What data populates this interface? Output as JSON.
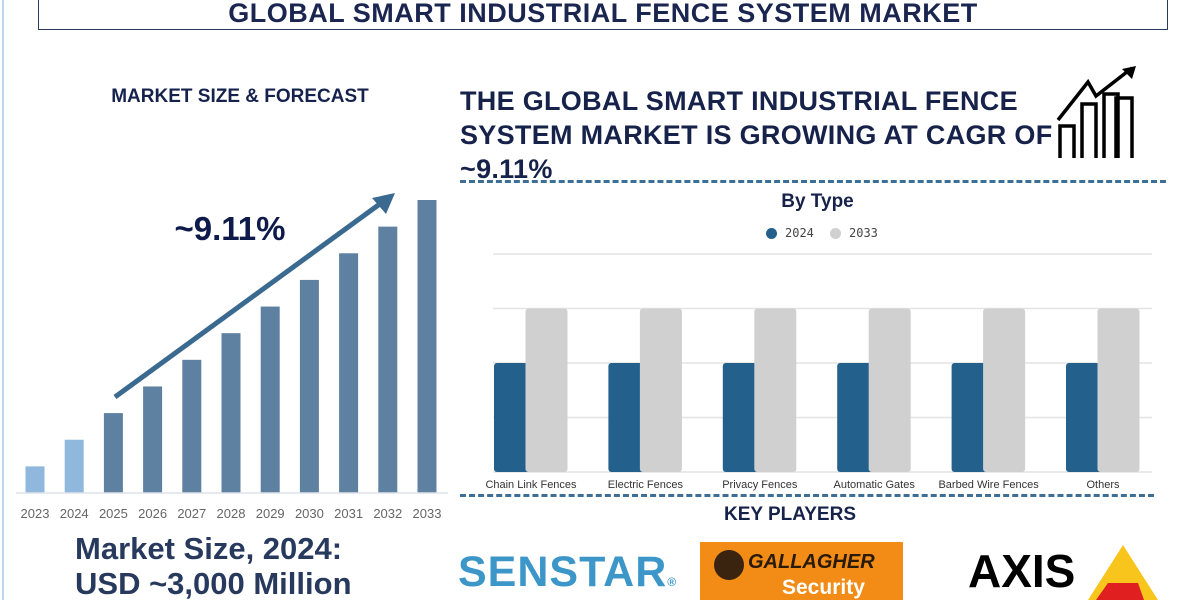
{
  "title": "GLOBAL SMART INDUSTRIAL FENCE SYSTEM MARKET",
  "left_panel": {
    "heading": "MARKET SIZE & FORECAST",
    "cagr_label": "~9.11%",
    "market_size_line1": "Market Size, 2024:",
    "market_size_line2": "USD ~3,000 Million"
  },
  "headline": "THE GLOBAL SMART INDUSTRIAL FENCE SYSTEM MARKET IS GROWING AT CAGR OF ~9.11%",
  "key_players": {
    "heading": "KEY PLAYERS",
    "logos": [
      "SENSTAR",
      "GALLAGHER Security",
      "AXIS COMMUNICATIONS"
    ]
  },
  "colors": {
    "historic": "#8fb8dc",
    "forecast": "#5e81a2",
    "type_2024": "#23608c",
    "type_2033": "#d0d0d0",
    "heading": "#16224a"
  },
  "chart_data": [
    {
      "type": "bar",
      "title": "",
      "categories": [
        "2023",
        "2024",
        "2025",
        "2026",
        "2027",
        "2028",
        "2029",
        "2030",
        "2031",
        "2032",
        "2033"
      ],
      "values": [
        1,
        2,
        3,
        4,
        5,
        6,
        7,
        8,
        9,
        10,
        11
      ],
      "value_note_relative": true,
      "historic": [
        "2023",
        "2024"
      ],
      "annotation": "~9.11%",
      "grid": false
    },
    {
      "type": "bar",
      "title": "By Type",
      "categories": [
        "Chain Link Fences",
        "Electric Fences",
        "Privacy Fences",
        "Automatic Gates",
        "Barbed Wire Fences",
        "Others"
      ],
      "series": [
        {
          "name": "2024",
          "values": [
            2,
            2,
            2,
            2,
            2,
            2
          ]
        },
        {
          "name": "2033",
          "values": [
            3,
            3,
            3,
            3,
            3,
            3
          ]
        }
      ],
      "ylim": [
        0,
        4
      ],
      "grid": true,
      "legend": "top"
    }
  ]
}
